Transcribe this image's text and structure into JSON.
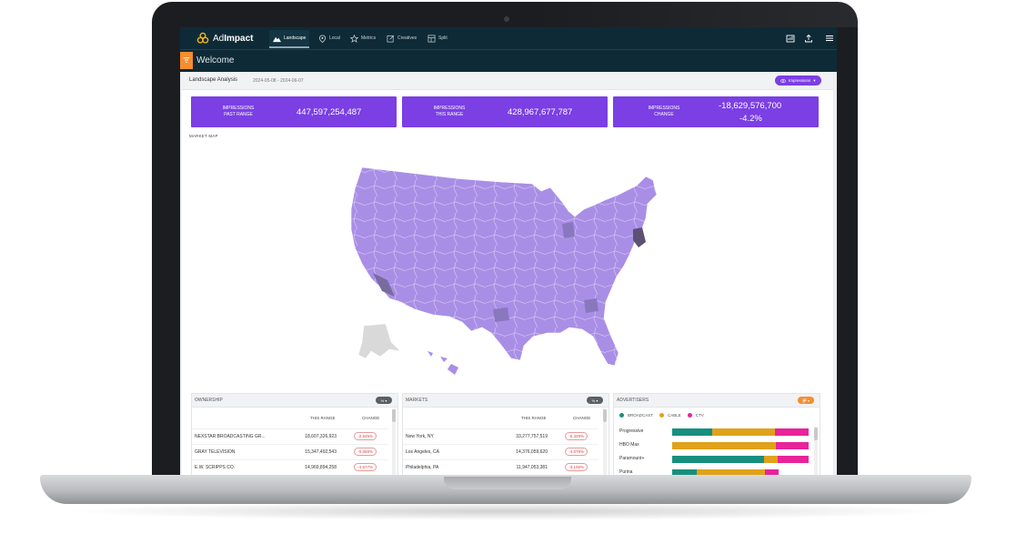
{
  "brand": {
    "name_light": "Ad",
    "name_bold": "Impact"
  },
  "nav": {
    "items": [
      {
        "label": "Landscape",
        "icon": "mountain-icon",
        "active": true
      },
      {
        "label": "Local",
        "icon": "map-pin-icon"
      },
      {
        "label": "Metrics",
        "icon": "star-icon"
      },
      {
        "label": "Creatives",
        "icon": "edit-icon"
      },
      {
        "label": "Split",
        "icon": "split-icon"
      }
    ],
    "right_icons": [
      "report-icon",
      "upload-icon",
      "menu-icon"
    ]
  },
  "welcome": {
    "title": "Welcome",
    "filter_icon": "filter-icon"
  },
  "analysis": {
    "title": "Landscape Analysis",
    "date_range": "2024-05-08 - 2024-06-07",
    "metric_select": "Impressions"
  },
  "kpis": [
    {
      "label_line1": "IMPRESSIONS",
      "label_line2": "PAST RANGE",
      "value": "447,597,254,487"
    },
    {
      "label_line1": "IMPRESSIONS",
      "label_line2": "THIS RANGE",
      "value": "428,967,677,787"
    },
    {
      "label_line1": "IMPRESSIONS",
      "label_line2": "CHANGE",
      "value": "-18,629,576,700",
      "value2": "-4.2%"
    }
  ],
  "market_map": {
    "label": "MARKET MAP"
  },
  "ownership": {
    "title": "OWNERSHIP",
    "toggle": "%",
    "columns": [
      "THIS RANGE",
      "CHANGE"
    ],
    "rows": [
      {
        "name": "NEXSTAR BROADCASTING GR...",
        "value": "18,607,326,923",
        "change": "-2.545%"
      },
      {
        "name": "GRAY TELEVISION",
        "value": "15,347,492,543",
        "change": "-0.668%"
      },
      {
        "name": "E.W. SCRIPPS CO.",
        "value": "14,969,894,258",
        "change": "-4.577%"
      }
    ]
  },
  "markets": {
    "title": "MARKETS",
    "toggle": "%",
    "columns": [
      "THIS RANGE",
      "CHANGE"
    ],
    "rows": [
      {
        "name": "New York, NY",
        "value": "33,277,757,519",
        "change": "-5.329%"
      },
      {
        "name": "Los Angeles, CA",
        "value": "14,376,059,620",
        "change": "-4.878%"
      },
      {
        "name": "Philadelphia, PA",
        "value": "11,947,053,381",
        "change": "-3.106%"
      }
    ]
  },
  "advertisers": {
    "title": "ADVERTISERS",
    "legend": [
      {
        "label": "BROADCAST",
        "color": "#178f7f"
      },
      {
        "label": "CABLE",
        "color": "#e0a21a"
      },
      {
        "label": "CTV",
        "color": "#e8239b"
      }
    ],
    "rows": [
      {
        "name": "Progressive",
        "shares": [
          0.29,
          0.46,
          0.25
        ]
      },
      {
        "name": "HBO Max",
        "shares": [
          0.0,
          0.76,
          0.24
        ]
      },
      {
        "name": "Paramount+",
        "shares": [
          0.67,
          0.1,
          0.23
        ]
      },
      {
        "name": "Purina",
        "shares": [
          0.18,
          0.5,
          0.1
        ]
      }
    ]
  },
  "colors": {
    "accent": "#7b3fe4",
    "nav_bg": "#0e2a36",
    "filter": "#f68d2e",
    "map_fill": "#a98ee6",
    "map_dark": "#7a6b9f"
  }
}
